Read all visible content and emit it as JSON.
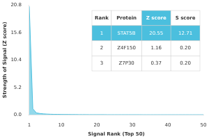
{
  "chart_data": {
    "type": "area",
    "xlabel": "Signal Rank (Top 50)",
    "ylabel": "Strength of Signal (Z score)",
    "x": [
      1,
      2,
      3,
      4,
      5,
      6,
      7,
      8,
      9,
      10,
      11,
      12,
      13,
      14,
      15,
      16,
      17,
      18,
      19,
      20,
      21,
      22,
      23,
      24,
      25,
      26,
      27,
      28,
      29,
      30,
      31,
      32,
      33,
      34,
      35,
      36,
      37,
      38,
      39,
      40,
      41,
      42,
      43,
      44,
      45,
      46,
      47,
      48,
      49,
      50
    ],
    "values": [
      20.55,
      1.16,
      0.37,
      0.25,
      0.18,
      0.14,
      0.11,
      0.09,
      0.08,
      0.07,
      0.06,
      0.06,
      0.05,
      0.05,
      0.04,
      0.04,
      0.04,
      0.03,
      0.03,
      0.03,
      0.03,
      0.03,
      0.02,
      0.02,
      0.02,
      0.02,
      0.02,
      0.02,
      0.02,
      0.02,
      0.02,
      0.02,
      0.01,
      0.01,
      0.01,
      0.01,
      0.01,
      0.01,
      0.01,
      0.01,
      0.01,
      0.01,
      0.01,
      0.01,
      0.01,
      0.01,
      0.01,
      0.01,
      0.01,
      0.01
    ],
    "color": "#4bbfde",
    "xlim": [
      1,
      50
    ],
    "xticks": [
      1,
      10,
      20,
      30,
      40,
      50
    ],
    "ylim": [
      0,
      20.8
    ],
    "yticks": [
      {
        "value": 0.0,
        "label": "0.0"
      },
      5.2,
      10.4,
      15.6,
      20.8
    ],
    "grid": false,
    "table": {
      "columns": [
        "Rank",
        "Protein",
        "Z score",
        "S score"
      ],
      "rows": [
        [
          "1",
          "STAT5B",
          "20.55",
          "12.71"
        ],
        [
          "2",
          "Z4F150",
          "1.16",
          "0.20"
        ],
        [
          "3",
          "Z7P30",
          "0.37",
          "0.20"
        ]
      ]
    }
  }
}
